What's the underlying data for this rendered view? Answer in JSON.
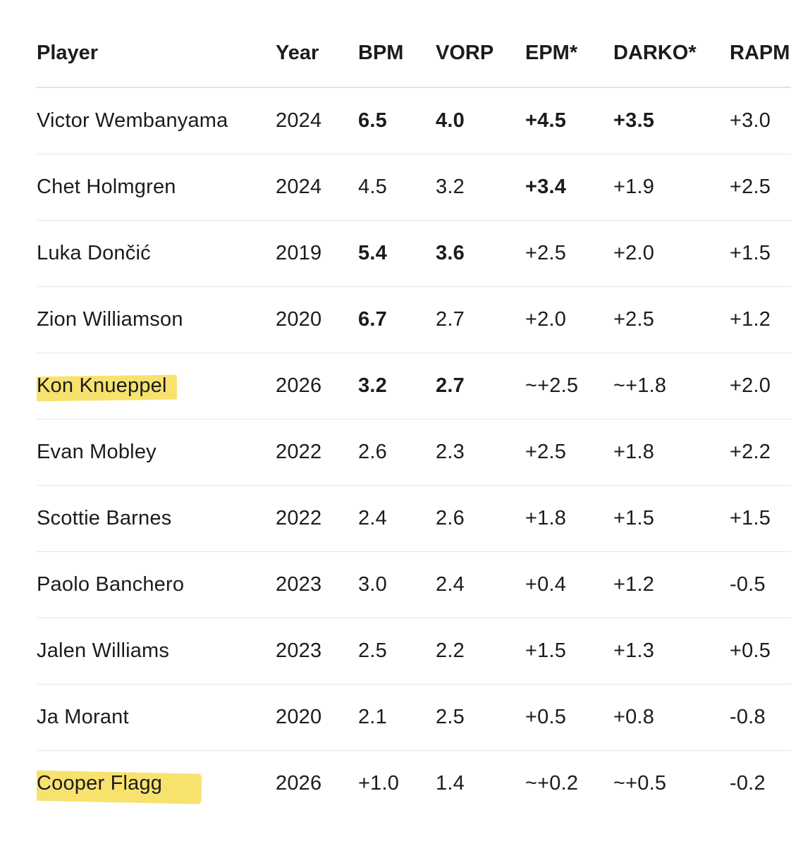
{
  "table": {
    "headers": [
      "Player",
      "Year",
      "BPM",
      "VORP",
      "EPM*",
      "DARKO*",
      "RAPM"
    ],
    "rows": [
      {
        "player": "Victor Wembanyama",
        "year": "2024",
        "bpm": "6.5",
        "vorp": "4.0",
        "epm": "+4.5",
        "darko": "+3.5",
        "rapm": "+3.0",
        "bold": [
          "bpm",
          "vorp",
          "epm",
          "darko"
        ],
        "highlighted": false
      },
      {
        "player": "Chet Holmgren",
        "year": "2024",
        "bpm": "4.5",
        "vorp": "3.2",
        "epm": "+3.4",
        "darko": "+1.9",
        "rapm": "+2.5",
        "bold": [
          "epm"
        ],
        "highlighted": false
      },
      {
        "player": "Luka Dončić",
        "year": "2019",
        "bpm": "5.4",
        "vorp": "3.6",
        "epm": "+2.5",
        "darko": "+2.0",
        "rapm": "+1.5",
        "bold": [
          "bpm",
          "vorp"
        ],
        "highlighted": false
      },
      {
        "player": "Zion Williamson",
        "year": "2020",
        "bpm": "6.7",
        "vorp": "2.7",
        "epm": "+2.0",
        "darko": "+2.5",
        "rapm": "+1.2",
        "bold": [
          "bpm"
        ],
        "highlighted": false
      },
      {
        "player": "Kon Knueppel",
        "year": "2026",
        "bpm": "3.2",
        "vorp": "2.7",
        "epm": "~+2.5",
        "darko": "~+1.8",
        "rapm": "+2.0",
        "bold": [
          "bpm",
          "vorp"
        ],
        "highlighted": true
      },
      {
        "player": "Evan Mobley",
        "year": "2022",
        "bpm": "2.6",
        "vorp": "2.3",
        "epm": "+2.5",
        "darko": "+1.8",
        "rapm": "+2.2",
        "bold": [],
        "highlighted": false
      },
      {
        "player": "Scottie Barnes",
        "year": "2022",
        "bpm": "2.4",
        "vorp": "2.6",
        "epm": "+1.8",
        "darko": "+1.5",
        "rapm": "+1.5",
        "bold": [],
        "highlighted": false
      },
      {
        "player": "Paolo Banchero",
        "year": "2023",
        "bpm": "3.0",
        "vorp": "2.4",
        "epm": "+0.4",
        "darko": "+1.2",
        "rapm": "-0.5",
        "bold": [],
        "highlighted": false
      },
      {
        "player": "Jalen Williams",
        "year": "2023",
        "bpm": "2.5",
        "vorp": "2.2",
        "epm": "+1.5",
        "darko": "+1.3",
        "rapm": "+0.5",
        "bold": [],
        "highlighted": false
      },
      {
        "player": "Ja Morant",
        "year": "2020",
        "bpm": "2.1",
        "vorp": "2.5",
        "epm": "+0.5",
        "darko": "+0.8",
        "rapm": "-0.8",
        "bold": [],
        "highlighted": false
      },
      {
        "player": "Cooper Flagg",
        "year": "2026",
        "bpm": "+1.0",
        "vorp": "1.4",
        "epm": "~+0.2",
        "darko": "~+0.5",
        "rapm": "-0.2",
        "bold": [],
        "highlighted": true
      }
    ]
  },
  "colors": {
    "text": "#1c1c1e",
    "highlight": "#f7dd55",
    "divider": "#e6e6e8"
  }
}
